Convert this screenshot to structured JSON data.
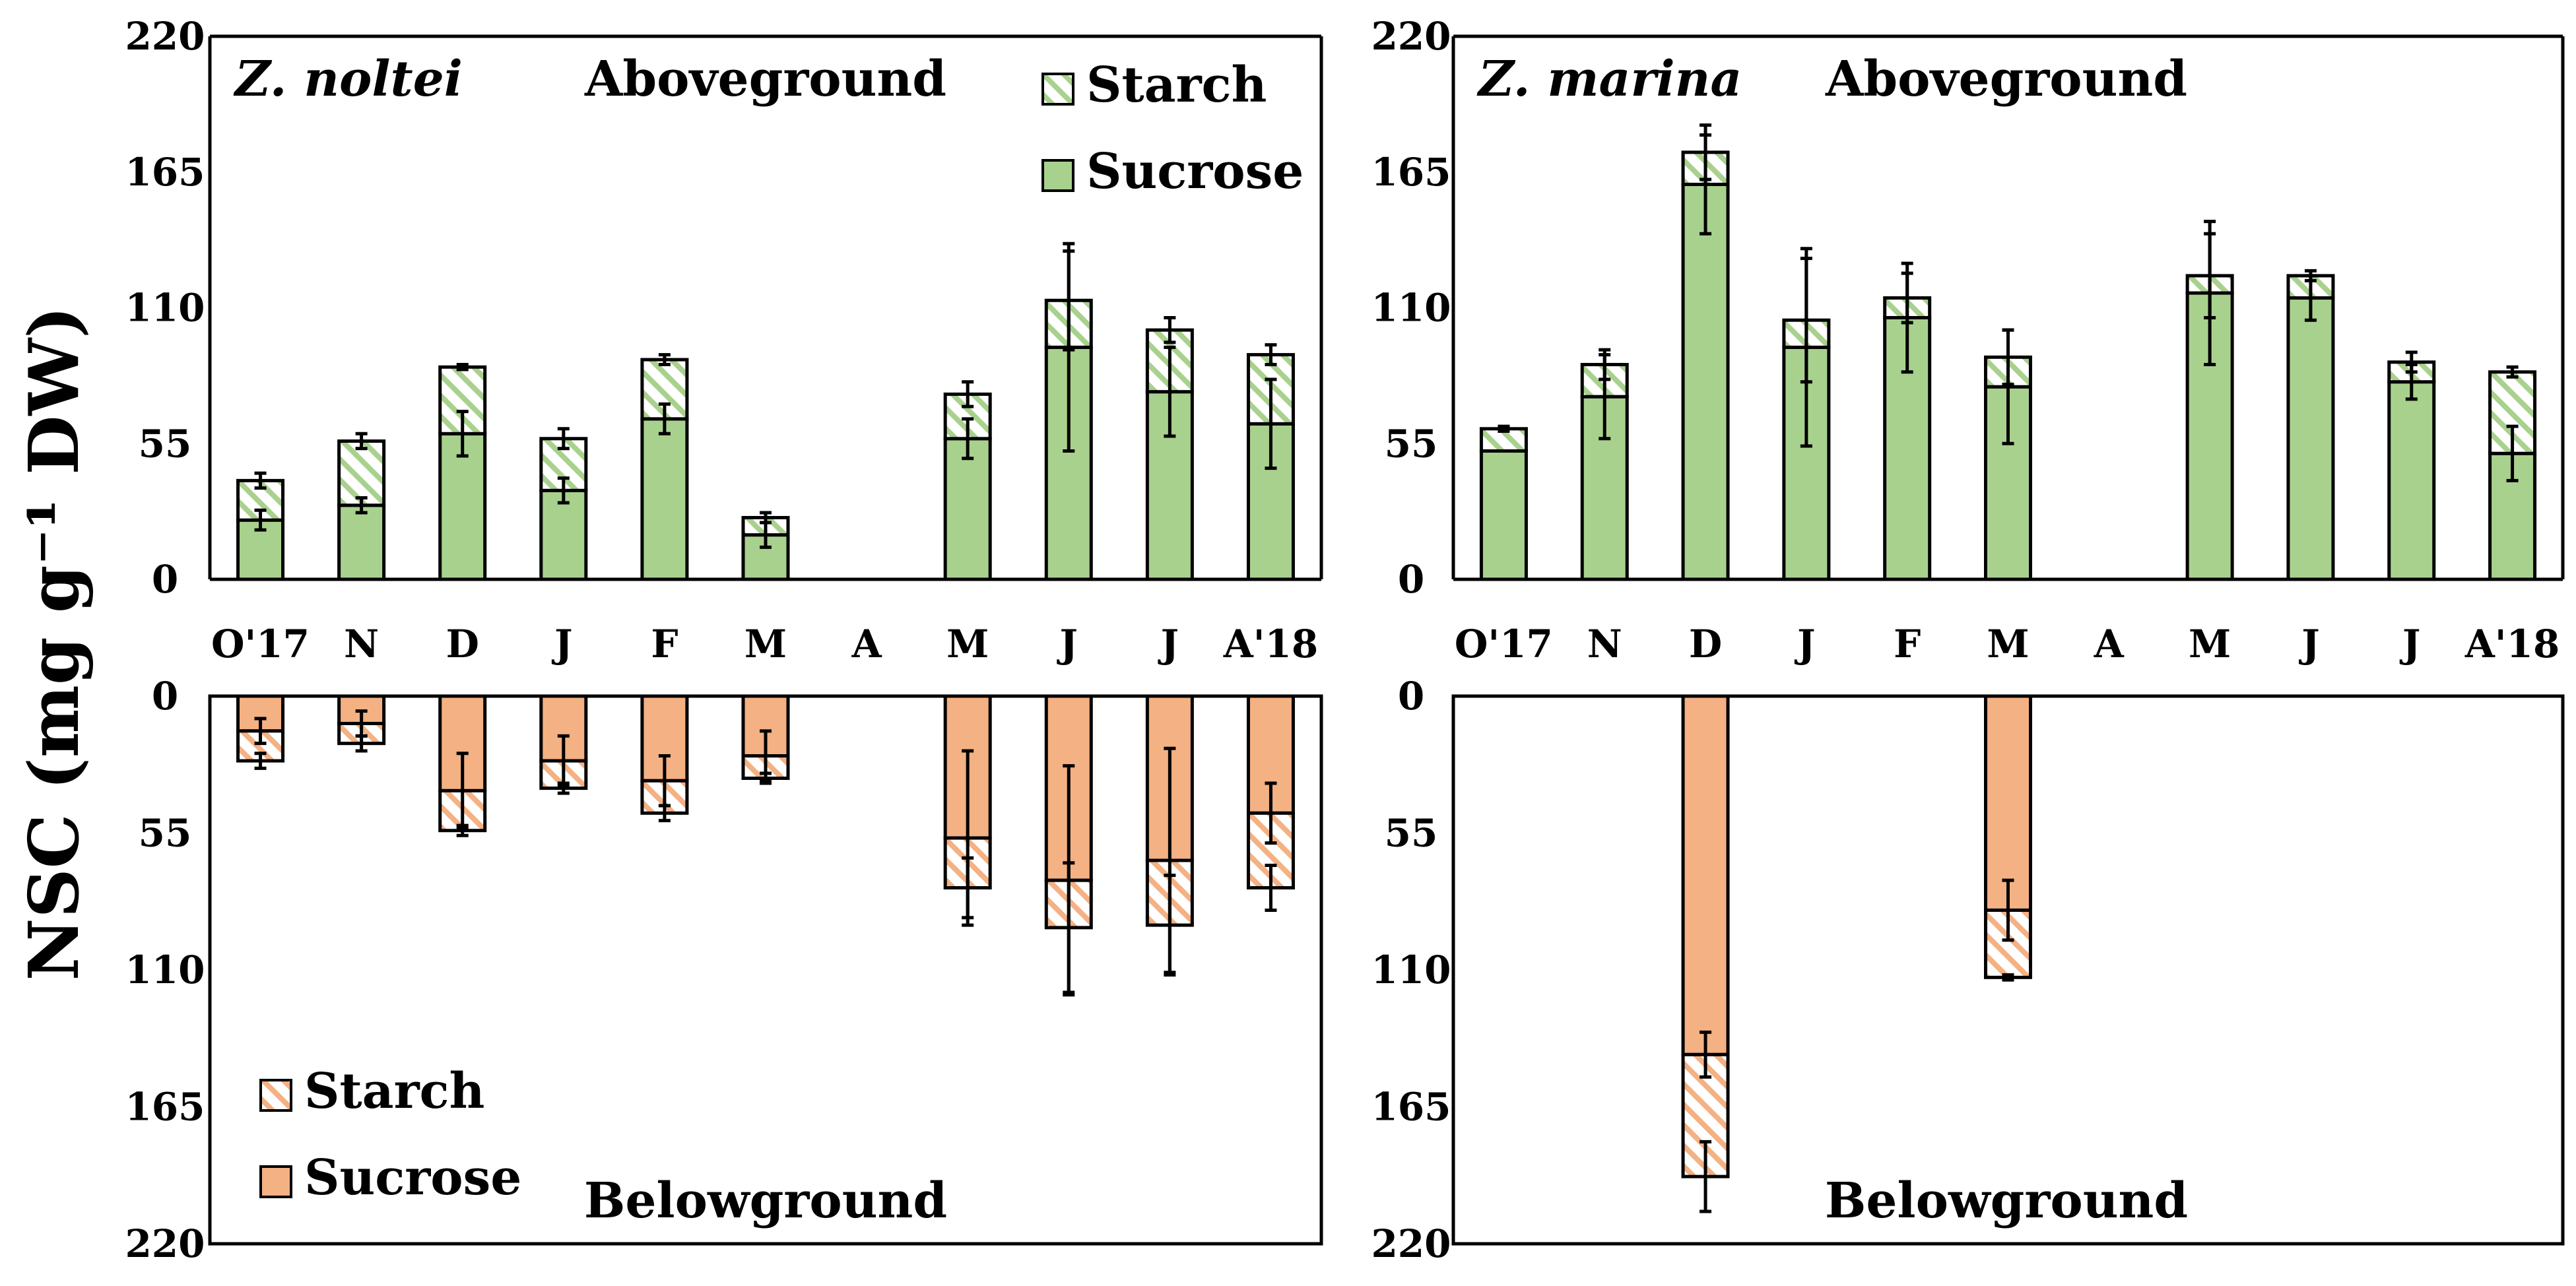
{
  "ylabel": "NSC (mg g⁻¹ DW)",
  "months": [
    "O'17",
    "N",
    "D",
    "J",
    "F",
    "M",
    "A",
    "M",
    "J",
    "J",
    "A'18"
  ],
  "colors": {
    "green": "#a9d18e",
    "orange": "#f4b183",
    "hatch_green": "#a9d18e",
    "hatch_orange": "#f4b183"
  },
  "legend": {
    "starch": "Starch",
    "sucrose": "Sucrose"
  },
  "chart_data": [
    {
      "type": "bar",
      "stacked": true,
      "panel": "top-left",
      "species": "Z. noltei",
      "title": "Aboveground",
      "ylim": [
        0,
        220
      ],
      "yticks": [
        "0",
        "55",
        "110",
        "165",
        "220"
      ],
      "categories": [
        "O'17",
        "N",
        "D",
        "J",
        "F",
        "M",
        "A",
        "M",
        "J",
        "J",
        "A'18"
      ],
      "series": [
        {
          "name": "Sucrose",
          "values": [
            24,
            30,
            59,
            36,
            65,
            18,
            null,
            57,
            94,
            76,
            63
          ],
          "err": [
            4,
            3,
            9,
            5,
            6,
            5,
            null,
            8,
            42,
            18,
            18
          ]
        },
        {
          "name": "Starch",
          "values": [
            16,
            26,
            27,
            21,
            24,
            7,
            null,
            18,
            19,
            25,
            28
          ],
          "err": [
            3,
            3,
            1,
            4,
            2,
            2,
            null,
            5,
            20,
            5,
            4
          ]
        }
      ],
      "legend_position": "top-right"
    },
    {
      "type": "bar",
      "stacked": true,
      "panel": "top-right",
      "species": "Z. marina",
      "title": "Aboveground",
      "ylim": [
        0,
        220
      ],
      "yticks": [
        "0",
        "55",
        "110",
        "165",
        "220"
      ],
      "categories": [
        "O'17",
        "N",
        "D",
        "J",
        "F",
        "M",
        "A",
        "M",
        "J",
        "J",
        "A'18"
      ],
      "series": [
        {
          "name": "Sucrose",
          "values": [
            52,
            74,
            160,
            94,
            106,
            78,
            null,
            116,
            114,
            80,
            51
          ],
          "err": [
            0,
            17,
            20,
            40,
            22,
            23,
            null,
            29,
            9,
            7,
            11
          ]
        },
        {
          "name": "Starch",
          "values": [
            9,
            13,
            13,
            11,
            8,
            12,
            null,
            7,
            9,
            8,
            33
          ],
          "err": [
            1,
            6,
            11,
            25,
            10,
            11,
            null,
            17,
            2,
            4,
            2
          ]
        }
      ]
    },
    {
      "type": "bar",
      "stacked": true,
      "inverted": true,
      "panel": "bottom-left",
      "title": "Belowground",
      "ylim": [
        0,
        220
      ],
      "yticks": [
        "0",
        "55",
        "110",
        "165",
        "220"
      ],
      "categories": [
        "O'17",
        "N",
        "D",
        "J",
        "F",
        "M",
        "A",
        "M",
        "J",
        "J",
        "A'18"
      ],
      "series": [
        {
          "name": "Sucrose",
          "values": [
            14,
            11,
            38,
            26,
            34,
            24,
            null,
            57,
            74,
            66,
            47
          ],
          "err": [
            5,
            5,
            15,
            10,
            10,
            10,
            null,
            35,
            46,
            45,
            12
          ]
        },
        {
          "name": "Starch",
          "values": [
            12,
            8,
            16,
            11,
            13,
            9,
            null,
            20,
            19,
            26,
            30
          ],
          "err": [
            3,
            3,
            2,
            2,
            3,
            2,
            null,
            12,
            26,
            20,
            9
          ]
        }
      ],
      "legend_position": "bottom-left"
    },
    {
      "type": "bar",
      "stacked": true,
      "inverted": true,
      "panel": "bottom-right",
      "title": "Belowground",
      "ylim": [
        0,
        220
      ],
      "yticks": [
        "0",
        "55",
        "110",
        "165",
        "220"
      ],
      "categories": [
        "O'17",
        "N",
        "D",
        "J",
        "F",
        "M",
        "A",
        "M",
        "J",
        "J",
        "A'18"
      ],
      "series": [
        {
          "name": "Sucrose",
          "values": [
            null,
            null,
            144,
            null,
            null,
            86,
            null,
            null,
            null,
            null,
            null
          ],
          "err": [
            null,
            null,
            9,
            null,
            null,
            12,
            null,
            null,
            null,
            null,
            null
          ]
        },
        {
          "name": "Starch",
          "values": [
            null,
            null,
            49,
            null,
            null,
            27,
            null,
            null,
            null,
            null,
            null
          ],
          "err": [
            null,
            null,
            14,
            null,
            null,
            1,
            null,
            null,
            null,
            null,
            null
          ]
        }
      ]
    }
  ]
}
